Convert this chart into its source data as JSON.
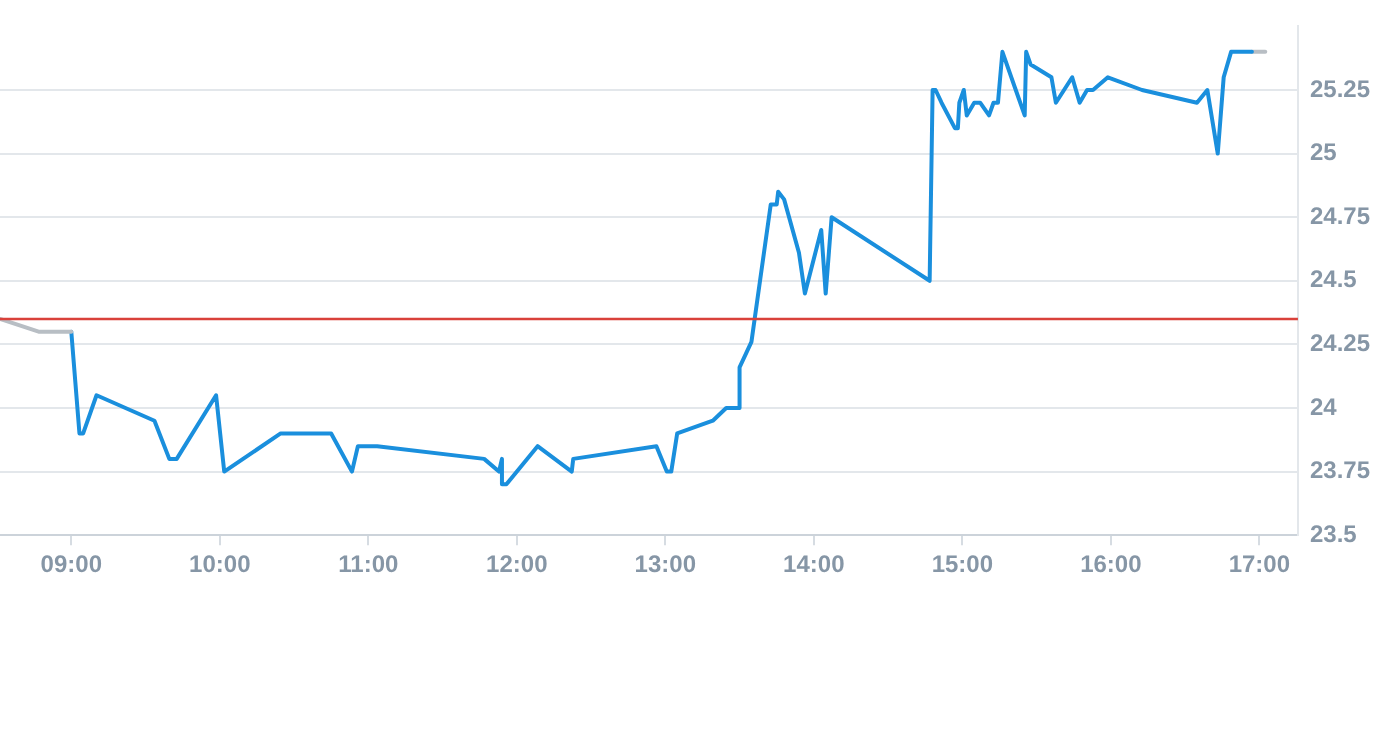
{
  "chart_data": {
    "type": "line",
    "marker": "none",
    "line_style": "solid",
    "grid": "y",
    "legend": false,
    "xlim": [
      8.52,
      17.26
    ],
    "xticks": [
      {
        "value": 9,
        "label": "09:00"
      },
      {
        "value": 10,
        "label": "10:00"
      },
      {
        "value": 11,
        "label": "11:00"
      },
      {
        "value": 12,
        "label": "12:00"
      },
      {
        "value": 13,
        "label": "13:00"
      },
      {
        "value": 14,
        "label": "14:00"
      },
      {
        "value": 15,
        "label": "15:00"
      },
      {
        "value": 16,
        "label": "16:00"
      },
      {
        "value": 17,
        "label": "17:00"
      }
    ],
    "ylim": [
      23.5,
      25.5
    ],
    "yticks": [
      23.5,
      23.75,
      24,
      24.25,
      24.5,
      24.75,
      25,
      25.25
    ],
    "ref_lines": [
      {
        "axis": "y",
        "value": 24.35,
        "color": "#d9413a"
      }
    ],
    "series": [
      {
        "color": "#b8bec4",
        "x": [
          8.52,
          8.78,
          9.0
        ],
        "values": [
          24.35,
          24.3,
          24.3
        ]
      },
      {
        "color": "#1a8fdd",
        "x": [
          9.0,
          9.055,
          9.08,
          9.17,
          9.56,
          9.66,
          9.71,
          9.975,
          10.03,
          10.41,
          10.75,
          10.89,
          10.93,
          11.06,
          11.78,
          11.88,
          11.9,
          11.9,
          11.93,
          12.14,
          12.37,
          12.38,
          12.94,
          13.01,
          13.04,
          13.08,
          13.32,
          13.41,
          13.5,
          13.5,
          13.58,
          13.71,
          13.75,
          13.76,
          13.8,
          13.9,
          13.94,
          14.05,
          14.08,
          14.12,
          14.78,
          14.8,
          14.82,
          14.86,
          14.95,
          14.97,
          14.98,
          15.01,
          15.03,
          15.08,
          15.12,
          15.18,
          15.21,
          15.24,
          15.27,
          15.42,
          15.43,
          15.46,
          15.6,
          15.63,
          15.74,
          15.79,
          15.84,
          15.88,
          15.98,
          16.21,
          16.58,
          16.65,
          16.72,
          16.76,
          16.81,
          16.95
        ],
        "values": [
          24.3,
          23.9,
          23.9,
          24.05,
          23.95,
          23.8,
          23.8,
          24.05,
          23.75,
          23.9,
          23.9,
          23.75,
          23.85,
          23.85,
          23.8,
          23.75,
          23.8,
          23.7,
          23.7,
          23.85,
          23.75,
          23.8,
          23.85,
          23.75,
          23.75,
          23.9,
          23.95,
          24.0,
          24.0,
          24.16,
          24.26,
          24.8,
          24.8,
          24.85,
          24.82,
          24.61,
          24.45,
          24.7,
          24.45,
          24.75,
          24.5,
          25.25,
          25.25,
          25.2,
          25.1,
          25.1,
          25.2,
          25.25,
          25.15,
          25.2,
          25.2,
          25.15,
          25.2,
          25.2,
          25.4,
          25.15,
          25.4,
          25.35,
          25.3,
          25.2,
          25.3,
          25.2,
          25.25,
          25.25,
          25.3,
          25.25,
          25.2,
          25.25,
          25.0,
          25.3,
          25.4,
          25.4
        ]
      },
      {
        "color": "#b8bec4",
        "x": [
          16.95,
          17.04
        ],
        "values": [
          25.4,
          25.4
        ]
      }
    ]
  }
}
